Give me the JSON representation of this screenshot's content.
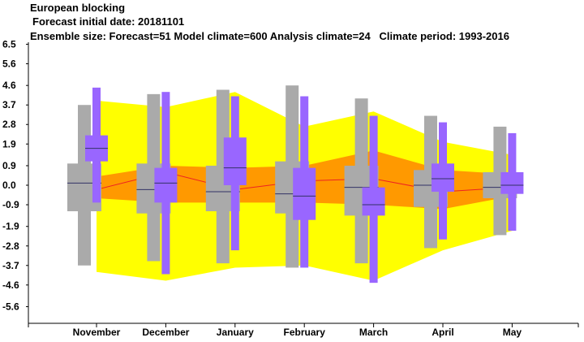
{
  "header": {
    "title": "European blocking",
    "init_date": "Forecast initial date: 20181101",
    "ensemble": "Ensemble size: Forecast=51 Model climate=600 Analysis climate=24   Climate period: 1993-2016"
  },
  "chart_data": {
    "type": "box",
    "categories": [
      "November",
      "December",
      "January",
      "February",
      "March",
      "April",
      "May"
    ],
    "yticks": [
      6.5,
      5.6,
      4.6,
      3.7,
      2.8,
      1.9,
      0.9,
      0.0,
      -0.9,
      -1.9,
      -2.8,
      -3.7,
      -4.6,
      -5.6
    ],
    "ytick_labels": [
      "6.5",
      "5.6",
      "4.6",
      "3.7",
      "2.8",
      "1.9",
      "0.9",
      "0.0",
      "-0.9",
      "-1.9",
      "-2.8",
      "-3.7",
      "-4.6",
      "-5.6"
    ],
    "ylim": [
      -6.4,
      6.8
    ],
    "climate_outer": {
      "upper": [
        3.9,
        3.6,
        4.3,
        2.7,
        3.4,
        2.0,
        1.4
      ],
      "lower": [
        -4.0,
        -4.4,
        -3.8,
        -3.7,
        -4.4,
        -3.0,
        -2.1
      ],
      "color": "#ffff00"
    },
    "climate_inner": {
      "upper": [
        0.4,
        0.9,
        0.8,
        0.9,
        1.6,
        0.7,
        0.5
      ],
      "lower": [
        -0.6,
        -0.8,
        -0.8,
        -0.8,
        -0.9,
        -1.1,
        -0.5
      ],
      "color": "#ff9900"
    },
    "climate_median": {
      "values": [
        -0.2,
        0.6,
        -0.2,
        0.2,
        0.3,
        -0.3,
        -0.1
      ],
      "color": "#ee2222"
    },
    "model_climate": {
      "color": "#aaaaaa",
      "boxes": [
        {
          "min": -3.7,
          "q1": -1.2,
          "median": 0.1,
          "q3": 1.0,
          "max": 3.7
        },
        {
          "min": -3.5,
          "q1": -1.3,
          "median": -0.2,
          "q3": 1.0,
          "max": 4.2
        },
        {
          "min": -3.6,
          "q1": -1.2,
          "median": -0.3,
          "q3": 0.9,
          "max": 4.4
        },
        {
          "min": -3.8,
          "q1": -1.3,
          "median": -0.4,
          "q3": 1.1,
          "max": 4.6
        },
        {
          "min": -3.6,
          "q1": -1.4,
          "median": -0.1,
          "q3": 0.9,
          "max": 4.0
        },
        {
          "min": -2.9,
          "q1": -1.0,
          "median": 0.0,
          "q3": 0.7,
          "max": 3.2
        },
        {
          "min": -2.3,
          "q1": -0.6,
          "median": -0.1,
          "q3": 0.6,
          "max": 2.7
        }
      ]
    },
    "forecast": {
      "color": "#9966ff",
      "boxes": [
        {
          "min": -0.8,
          "q1": 1.1,
          "median": 1.7,
          "q3": 2.3,
          "max": 4.5
        },
        {
          "min": -4.1,
          "q1": -0.8,
          "median": 0.1,
          "q3": 0.8,
          "max": 4.3
        },
        {
          "min": -3.0,
          "q1": 0.0,
          "median": 0.8,
          "q3": 2.2,
          "max": 4.1
        },
        {
          "min": -3.8,
          "q1": -1.6,
          "median": -0.5,
          "q3": 0.8,
          "max": 4.1
        },
        {
          "min": -4.5,
          "q1": -1.4,
          "median": -0.9,
          "q3": -0.1,
          "max": 3.2
        },
        {
          "min": -2.5,
          "q1": -0.3,
          "median": 0.3,
          "q3": 1.0,
          "max": 2.9
        },
        {
          "min": -2.1,
          "q1": -0.4,
          "median": 0.0,
          "q3": 0.6,
          "max": 2.4
        }
      ]
    }
  }
}
